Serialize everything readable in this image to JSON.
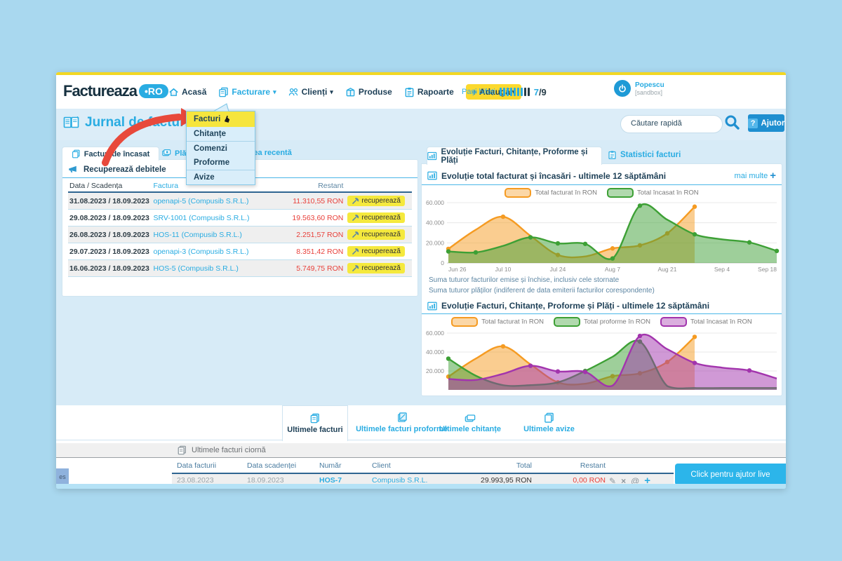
{
  "topbar": {
    "logo_text": "Factureaza",
    "logo_badge": "•RO",
    "nav": [
      "Acasă",
      "Facturare",
      "Clienți",
      "Produse",
      "Rapoarte"
    ],
    "add_label": "Adaugă",
    "steps_label": "Pași bifați",
    "steps_done": 7,
    "steps_total": 9,
    "steps_fraction_done": "7",
    "steps_fraction_rest": "/9",
    "user_name": "Popescu",
    "user_env": "[sandbox]"
  },
  "header": {
    "title": "Jurnal de facturi",
    "search_placeholder": "Căutare rapidă",
    "help_q": "?",
    "help_label": "Ajutor"
  },
  "dropdown": {
    "items": [
      {
        "label": "Facturi",
        "slug": "facturi"
      },
      {
        "label": "Chitanțe",
        "slug": "chitante"
      },
      {
        "label": "Comenzi",
        "slug": "comenzi"
      },
      {
        "label": "Proforme",
        "slug": "proforme"
      },
      {
        "label": "Avize",
        "slug": "avize"
      }
    ],
    "active_index": 0
  },
  "left_panel": {
    "tabs": [
      "Facturi de încasat",
      "Plăți recente",
      "Activitatea recentă"
    ],
    "section_title": "Recuperează debitele",
    "columns": [
      "Data / Scadența",
      "Factura",
      "Restant"
    ],
    "recover_label": "recuperează",
    "rows": [
      {
        "date": "31.08.2023 / 18.09.2023",
        "invoice": "openapi-5 (Compusib S.R.L.)",
        "amount": "11.310,55 RON"
      },
      {
        "date": "29.08.2023 / 18.09.2023",
        "invoice": "SRV-1001 (Compusib S.R.L.)",
        "amount": "19.563,60 RON"
      },
      {
        "date": "26.08.2023 / 18.09.2023",
        "invoice": "HOS-11 (Compusib S.R.L.)",
        "amount": "2.251,57 RON"
      },
      {
        "date": "29.07.2023 / 18.09.2023",
        "invoice": "openapi-3 (Compusib S.R.L.)",
        "amount": "8.351,42 RON"
      },
      {
        "date": "16.06.2023 / 18.09.2023",
        "invoice": "HOS-5 (Compusib S.R.L.)",
        "amount": "5.749,75 RON"
      }
    ]
  },
  "right_panel": {
    "tabs": [
      "Evoluție Facturi, Chitanțe, Proforme și Plăți",
      "Statistici facturi"
    ],
    "chart1_title": "Evoluție total facturat și încasări - ultimele 12 săptămâni",
    "more_label": "mai multe",
    "notes": [
      "Suma tuturor facturilor emise și închise, inclusiv cele stornate",
      "Suma tuturor plăților (indiferent de data emiterii facturilor corespondente)"
    ],
    "chart2_title": "Evoluție Facturi, Chitanțe, Proforme și Plăți - ultimele 12 săptămâni"
  },
  "chart_data": [
    {
      "type": "area",
      "title": "Evoluție total facturat și încasări - ultimele 12 săptămâni",
      "x": [
        "Jun 26",
        "Jul 3",
        "Jul 10",
        "Jul 17",
        "Jul 24",
        "Jul 31",
        "Aug 7",
        "Aug 14",
        "Aug 21",
        "Aug 28",
        "Sep 4",
        "Sep 11",
        "Sep 18"
      ],
      "ylim": [
        0,
        60000
      ],
      "yticks": [
        0,
        20000,
        40000,
        60000
      ],
      "ytick_labels": [
        "0",
        "20.000",
        "40.000",
        "60.000"
      ],
      "xtick_indices": [
        0,
        2,
        4,
        6,
        8,
        10,
        12
      ],
      "xtick_labels": [
        "Jun 26",
        "Jul 10",
        "Jul 24",
        "Aug 7",
        "Aug 21",
        "Sep 4",
        "Sep 18"
      ],
      "grid": true,
      "legend_position": "top",
      "series": [
        {
          "name": "Total facturat în RON",
          "color": "#f59b22",
          "values": [
            14000,
            33000,
            46000,
            27000,
            8000,
            6500,
            14500,
            17500,
            29500,
            56000,
            null,
            null,
            null
          ],
          "markers": [
            0,
            2,
            4,
            6,
            7,
            8,
            9
          ]
        },
        {
          "name": "Total încasat în RON",
          "color": "#3da035",
          "values": [
            11500,
            10500,
            17000,
            25500,
            19500,
            19000,
            4500,
            57000,
            43000,
            28500,
            23500,
            20500,
            12000
          ],
          "markers": [
            0,
            1,
            3,
            4,
            5,
            6,
            7,
            9,
            11,
            12
          ]
        }
      ]
    },
    {
      "type": "area",
      "title": "Evoluție Facturi, Chitanțe, Proforme și Plăți - ultimele 12 săptămâni",
      "x": [
        "Jun 26",
        "Jul 3",
        "Jul 10",
        "Jul 17",
        "Jul 24",
        "Jul 31",
        "Aug 7",
        "Aug 14",
        "Aug 21",
        "Aug 28",
        "Sep 4",
        "Sep 11",
        "Sep 18"
      ],
      "ylim": [
        0,
        60000
      ],
      "yticks": [
        20000,
        40000,
        60000
      ],
      "ytick_labels": [
        "20.000",
        "40.000",
        "60.000"
      ],
      "grid": true,
      "legend_position": "top",
      "clipped_bottom": true,
      "series": [
        {
          "name": "Total facturat în RON",
          "color": "#f59b22",
          "values": [
            14000,
            33000,
            46000,
            27000,
            8000,
            6500,
            14500,
            17500,
            29500,
            56000,
            null,
            null,
            null
          ],
          "markers": [
            0,
            2,
            4,
            6,
            7,
            8,
            9
          ]
        },
        {
          "name": "Total proforme în RON",
          "color": "#3da035",
          "values": [
            33000,
            15000,
            5000,
            5000,
            8000,
            20000,
            35000,
            51000,
            4000,
            2000,
            2000,
            2000,
            2000
          ],
          "markers": [
            0,
            5,
            7
          ]
        },
        {
          "name": "Total încasat în RON",
          "color": "#a234ad",
          "values": [
            11500,
            10500,
            17000,
            25500,
            19500,
            19000,
            4500,
            57000,
            43000,
            28500,
            23500,
            20500,
            12000
          ],
          "markers": [
            3,
            4,
            5,
            7,
            9,
            11
          ]
        }
      ]
    }
  ],
  "bottom": {
    "tabs": [
      "Ultimele facturi",
      "Ultimele facturi proforme",
      "Ultimele chitanțe",
      "Ultimele avize"
    ],
    "draft_bar": "Ultimele facturi ciornă",
    "columns": [
      "Data facturii",
      "Data scadenței",
      "Număr",
      "Client",
      "Total",
      "Restant"
    ],
    "row": {
      "date": "23.08.2023",
      "due": "18.09.2023",
      "number": "HOS-7",
      "client": "Compusib S.R.L.",
      "total": "29.993,95 RON",
      "restant": "0,00 RON"
    },
    "live_help": "Click pentru ajutor live",
    "side_tag": "es"
  }
}
